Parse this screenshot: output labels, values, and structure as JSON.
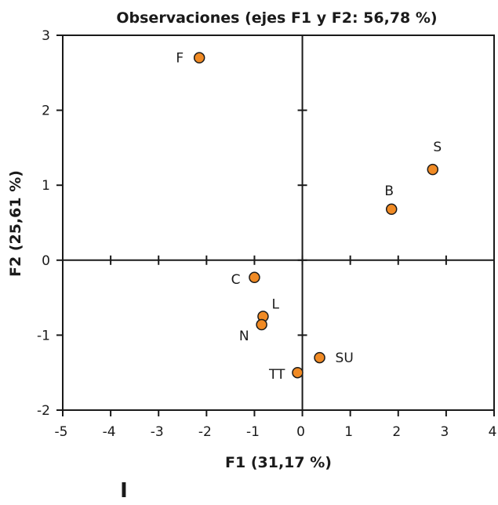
{
  "chart_data": {
    "type": "scatter",
    "title": "Observaciones (ejes F1 y F2: 56,78 %)",
    "xlabel": "F1 (31,17 %)",
    "ylabel": "F2 (25,61 %)",
    "xlim": [
      -5,
      4
    ],
    "ylim": [
      -2,
      3
    ],
    "xticks": [
      -5,
      -4,
      -3,
      -2,
      -1,
      0,
      1,
      2,
      3,
      4
    ],
    "yticks": [
      -2,
      -1,
      0,
      1,
      2,
      3
    ],
    "grid": false,
    "marker_color": "#f08a24",
    "marker_edge_color": "#1a1a1a",
    "points": [
      {
        "label": "F",
        "x": -2.15,
        "y": 2.7
      },
      {
        "label": "S",
        "x": 2.72,
        "y": 1.21
      },
      {
        "label": "B",
        "x": 1.86,
        "y": 0.68
      },
      {
        "label": "C",
        "x": -1.0,
        "y": -0.23
      },
      {
        "label": "L",
        "x": -0.82,
        "y": -0.75
      },
      {
        "label": "N",
        "x": -0.85,
        "y": -0.86
      },
      {
        "label": "SU",
        "x": 0.36,
        "y": -1.3
      },
      {
        "label": "TT",
        "x": -0.1,
        "y": -1.5
      }
    ]
  },
  "footer_mark": "I"
}
